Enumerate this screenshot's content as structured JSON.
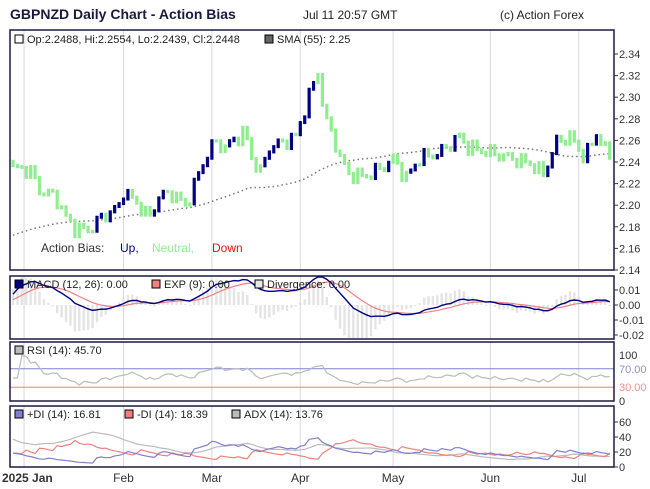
{
  "header": {
    "title": "GBPNZD Daily Chart - Action Bias",
    "timestamp": "Jul 11 20:57 GMT",
    "copyright": "(c) Action Forex"
  },
  "main_legend": {
    "ohlc": "Op:2.2488, Hi:2.2554, Lo:2.2439, Cl:2.2448",
    "sma": "SMA (55): 2.25"
  },
  "bias_legend": {
    "label": "Action Bias:",
    "up": "Up,",
    "neutral": "Neutral,",
    "down": "Down"
  },
  "macd_legend": {
    "macd": "MACD (12, 26): 0.00",
    "exp": "EXP (9): 0.00",
    "divergence": "Divergence: 0.00"
  },
  "rsi_legend": {
    "rsi": "RSI (14): 45.70"
  },
  "adx_legend": {
    "pdi": "+DI (14): 16.81",
    "mdi": "-DI (14): 18.39",
    "adx": "ADX (14): 13.76"
  },
  "colors": {
    "up": "#000080",
    "neutral": "#90ee90",
    "down": "#ff0000",
    "sma": "#777777",
    "macd": "#000080",
    "exp": "#f08080",
    "rsi": "#bbbbbb",
    "pdi": "#8080d0",
    "mdi": "#f08080",
    "adx": "#bbbbbb"
  },
  "chart_data": {
    "type": "candlestick",
    "title": "GBPNZD Daily Chart - Action Bias",
    "price_ticks": [
      "2.34",
      "2.32",
      "2.30",
      "2.28",
      "2.26",
      "2.24",
      "2.22",
      "2.20",
      "2.18",
      "2.16",
      "2.14"
    ],
    "price_range": [
      2.14,
      2.34
    ],
    "macd_ticks": [
      "0.01",
      "0.00",
      "-0.01",
      "-0.02"
    ],
    "rsi_ticks": [
      "100",
      "70.00",
      "30.00",
      "0"
    ],
    "adx_ticks": [
      "60",
      "40",
      "20",
      "0"
    ],
    "months": [
      {
        "label": "2025 Jan",
        "day": 2.5
      },
      {
        "label": "Feb",
        "day": 25
      },
      {
        "label": "Mar",
        "day": 45
      },
      {
        "label": "Apr",
        "day": 65
      },
      {
        "label": "May",
        "day": 86
      },
      {
        "label": "Jun",
        "day": 108
      },
      {
        "label": "Jul",
        "day": 128
      }
    ],
    "close_keypoints": [
      [
        0,
        2.235
      ],
      [
        2,
        2.235
      ],
      [
        4,
        2.233
      ],
      [
        6,
        2.215
      ],
      [
        9.5,
        2.21
      ],
      [
        12,
        2.19
      ],
      [
        14,
        2.18
      ],
      [
        17,
        2.178
      ],
      [
        20,
        2.19
      ],
      [
        22,
        2.195
      ],
      [
        24,
        2.2
      ],
      [
        25,
        2.215
      ],
      [
        27.5,
        2.205
      ],
      [
        31,
        2.19
      ],
      [
        33,
        2.21
      ],
      [
        36.5,
        2.212
      ],
      [
        39,
        2.2
      ],
      [
        41,
        2.22
      ],
      [
        43.5,
        2.245
      ],
      [
        45.5,
        2.26
      ],
      [
        48,
        2.255
      ],
      [
        51,
        2.265
      ],
      [
        52.5,
        2.27
      ],
      [
        54,
        2.245
      ],
      [
        56,
        2.232
      ],
      [
        58,
        2.255
      ],
      [
        61.5,
        2.26
      ],
      [
        64,
        2.265
      ],
      [
        66,
        2.29
      ],
      [
        67.6,
        2.31
      ],
      [
        69,
        2.325
      ],
      [
        70.6,
        2.28
      ],
      [
        72,
        2.27
      ],
      [
        74,
        2.245
      ],
      [
        76,
        2.23
      ],
      [
        79.6,
        2.228
      ],
      [
        83,
        2.235
      ],
      [
        86.4,
        2.245
      ],
      [
        88.7,
        2.225
      ],
      [
        92,
        2.245
      ],
      [
        96.6,
        2.25
      ],
      [
        101,
        2.265
      ],
      [
        103,
        2.255
      ],
      [
        108,
        2.25
      ],
      [
        112.5,
        2.245
      ],
      [
        117,
        2.24
      ],
      [
        120,
        2.23
      ],
      [
        123,
        2.26
      ],
      [
        126,
        2.265
      ],
      [
        129.4,
        2.245
      ],
      [
        132,
        2.268
      ],
      [
        135,
        2.2448
      ]
    ],
    "bars": 136
  }
}
